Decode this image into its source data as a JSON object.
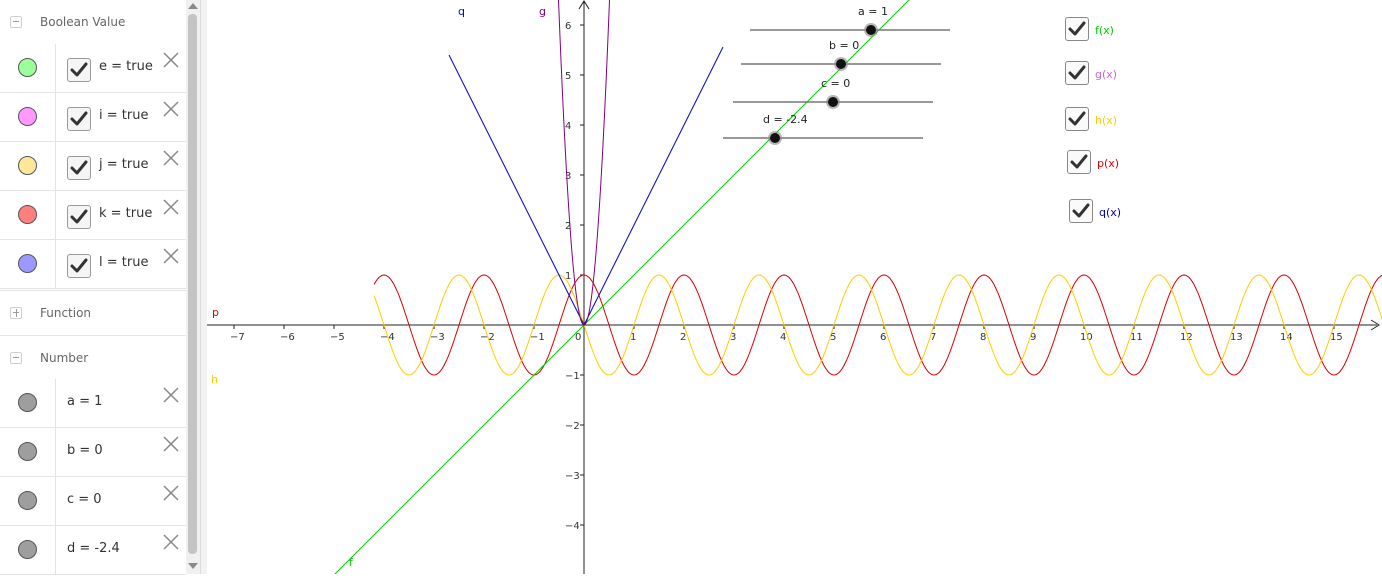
{
  "algebra": {
    "boolean_header": "Boolean Value",
    "function_header": "Function",
    "number_header": "Number",
    "booleans": [
      {
        "text": "e = true",
        "color": "#99ff99"
      },
      {
        "text": "i = true",
        "color": "#ff99ff"
      },
      {
        "text": "j = true",
        "color": "#ffe699"
      },
      {
        "text": "k = true",
        "color": "#ff7f7f"
      },
      {
        "text": "l = true",
        "color": "#9999ff"
      }
    ],
    "numbers": [
      {
        "text": "a = 1",
        "color": "#9e9e9e"
      },
      {
        "text": "b = 0",
        "color": "#9e9e9e"
      },
      {
        "text": "c = 0",
        "color": "#9e9e9e"
      },
      {
        "text": "d = -2.4",
        "color": "#9e9e9e"
      }
    ]
  },
  "graph": {
    "x_ticks": [
      "−7",
      "−6",
      "−5",
      "−4",
      "−3",
      "−2",
      "−1",
      "0",
      "1",
      "2",
      "3",
      "4",
      "5",
      "6",
      "7",
      "8",
      "9",
      "10",
      "11",
      "12",
      "13",
      "14",
      "15"
    ],
    "y_ticks": [
      "−4",
      "−3",
      "−2",
      "−1",
      "1",
      "2",
      "3",
      "4",
      "5",
      "6"
    ],
    "curve_labels": {
      "q": "q",
      "g": "g",
      "p": "p",
      "h": "h",
      "f": "f"
    },
    "colors": {
      "f": "#00cc00",
      "g": "#800080",
      "h": "#ffcc00",
      "p": "#dd0000",
      "q": "#0000cc"
    },
    "sliders": [
      {
        "label": "a = 1",
        "value": 1
      },
      {
        "label": "b = 0",
        "value": 0
      },
      {
        "label": "c = 0",
        "value": 0
      },
      {
        "label": "d = -2.4",
        "value": -2.4
      }
    ],
    "checkboxes": [
      {
        "label": "f(x)",
        "color": "#00cc00",
        "checked": true
      },
      {
        "label": "g(x)",
        "color": "#cc66cc",
        "checked": true
      },
      {
        "label": "h(x)",
        "color": "#ffcc00",
        "checked": true
      },
      {
        "label": "p(x)",
        "color": "#dd0000",
        "checked": true
      },
      {
        "label": "q(x)",
        "color": "#0000cc",
        "checked": true
      }
    ]
  }
}
